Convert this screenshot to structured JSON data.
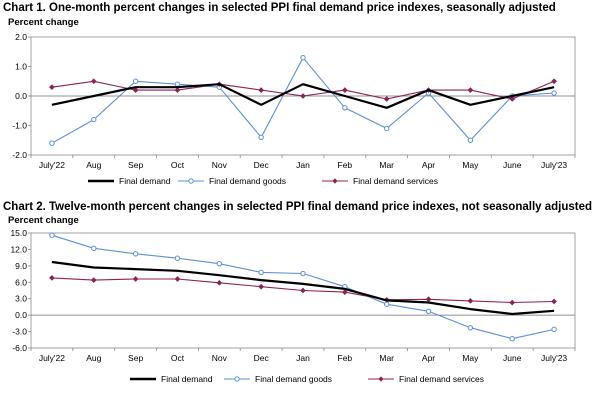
{
  "chart_data": [
    {
      "type": "line",
      "title": "Chart 1. One-month percent changes in selected PPI final demand price indexes, seasonally adjusted",
      "ylabel": "Percent change",
      "ylim": [
        -2.0,
        2.0
      ],
      "yticks": [
        "2.0",
        "1.0",
        "0.0",
        "-1.0",
        "-2.0"
      ],
      "ytick_values": [
        2.0,
        1.0,
        0.0,
        -1.0,
        -2.0
      ],
      "categories": [
        "July'22",
        "Aug",
        "Sep",
        "Oct",
        "Nov",
        "Dec",
        "Jan",
        "Feb",
        "Mar",
        "Apr",
        "May",
        "June",
        "July'23"
      ],
      "grid": false,
      "legend_position": "bottom",
      "series": [
        {
          "name": "Final demand",
          "color": "#000000",
          "marker": "none",
          "values": [
            -0.3,
            0.0,
            0.3,
            0.3,
            0.4,
            -0.3,
            0.4,
            0.0,
            -0.4,
            0.2,
            -0.3,
            0.0,
            0.3
          ]
        },
        {
          "name": "Final demand goods",
          "color": "#5b8fd6",
          "marker": "circle",
          "values": [
            -1.6,
            -0.8,
            0.5,
            0.4,
            0.3,
            -1.4,
            1.3,
            -0.4,
            -1.1,
            0.1,
            -1.5,
            0.0,
            0.1
          ]
        },
        {
          "name": "Final demand services",
          "color": "#8b2252",
          "marker": "diamond",
          "values": [
            0.3,
            0.5,
            0.2,
            0.2,
            0.4,
            0.2,
            0.0,
            0.2,
            -0.1,
            0.2,
            0.2,
            -0.1,
            0.5
          ]
        }
      ]
    },
    {
      "type": "line",
      "title": "Chart 2. Twelve-month percent changes in selected PPI final demand price indexes, not seasonally adjusted",
      "ylabel": "Percent change",
      "ylim": [
        -6.0,
        15.0
      ],
      "yticks": [
        "15.0",
        "12.0",
        "9.0",
        "6.0",
        "3.0",
        "0.0",
        "-3.0",
        "-6.0"
      ],
      "ytick_values": [
        15.0,
        12.0,
        9.0,
        6.0,
        3.0,
        0.0,
        -3.0,
        -6.0
      ],
      "categories": [
        "July'22",
        "Aug",
        "Sep",
        "Oct",
        "Nov",
        "Dec",
        "Jan",
        "Feb",
        "Mar",
        "Apr",
        "May",
        "June",
        "July'23"
      ],
      "grid": false,
      "legend_position": "bottom",
      "series": [
        {
          "name": "Final demand",
          "color": "#000000",
          "marker": "none",
          "values": [
            9.7,
            8.7,
            8.4,
            8.1,
            7.3,
            6.4,
            5.7,
            4.8,
            2.7,
            2.3,
            1.1,
            0.2,
            0.8
          ]
        },
        {
          "name": "Final demand goods",
          "color": "#5b8fd6",
          "marker": "circle",
          "values": [
            14.6,
            12.2,
            11.2,
            10.4,
            9.4,
            7.8,
            7.6,
            5.2,
            2.0,
            0.7,
            -2.3,
            -4.3,
            -2.6
          ]
        },
        {
          "name": "Final demand services",
          "color": "#8b2252",
          "marker": "diamond",
          "values": [
            6.8,
            6.4,
            6.6,
            6.6,
            5.9,
            5.2,
            4.5,
            4.2,
            2.8,
            2.9,
            2.6,
            2.3,
            2.5
          ]
        }
      ]
    }
  ]
}
